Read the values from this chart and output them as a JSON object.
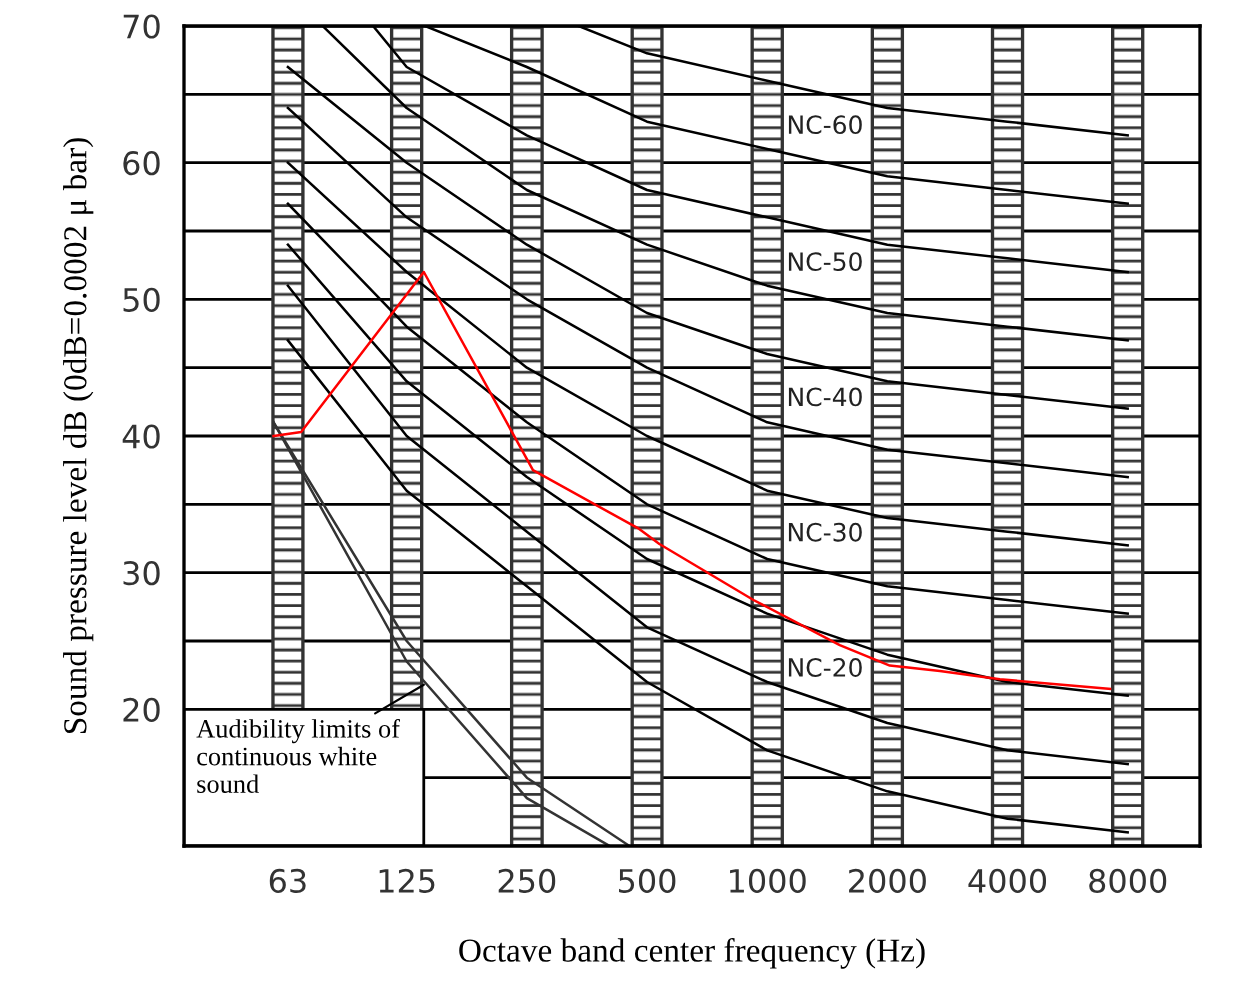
{
  "chart_data": {
    "type": "line",
    "xlabel": "Octave band center frequency (Hz)",
    "ylabel": "Sound pressure level dB (0dB=0.0002 μ bar)",
    "log": "x",
    "grid": "y",
    "legend": false,
    "marker": "none",
    "line_style": "solid",
    "xlim": [
      34.6,
      12140
    ],
    "xticks": [
      63,
      125,
      250,
      500,
      1000,
      2000,
      4000,
      8000
    ],
    "ylim": [
      10,
      70
    ],
    "yticks": [
      {
        "value": 15,
        "label": null
      },
      20,
      {
        "value": 25,
        "label": null
      },
      30,
      {
        "value": 35,
        "label": null
      },
      40,
      {
        "value": 45,
        "label": null
      },
      50,
      {
        "value": 55,
        "label": null
      },
      60,
      {
        "value": 65,
        "label": null
      },
      70
    ],
    "bands": [
      {
        "axis": "x",
        "from": 57.8,
        "to": 68.7,
        "color": "#333333"
      },
      {
        "axis": "x",
        "from": 114.6,
        "to": 136.3,
        "color": "#333333"
      },
      {
        "axis": "x",
        "from": 229,
        "to": 273,
        "color": "#333333"
      },
      {
        "axis": "x",
        "from": 459,
        "to": 545,
        "color": "#333333"
      },
      {
        "axis": "x",
        "from": 917,
        "to": 1091,
        "color": "#333333"
      },
      {
        "axis": "x",
        "from": 1834,
        "to": 2181,
        "color": "#333333"
      },
      {
        "axis": "x",
        "from": 3668,
        "to": 4362,
        "color": "#333333"
      },
      {
        "axis": "x",
        "from": 7336,
        "to": 8724,
        "color": "#333333"
      }
    ],
    "series": [
      {
        "color": "#000000",
        "x": [
          337,
          500,
          1000,
          2000,
          4000,
          8000
        ],
        "values": [
          70,
          68,
          66,
          64,
          63,
          62
        ]
      },
      {
        "color": "#000000",
        "x": [
          139,
          250,
          500,
          1000,
          2000,
          4000,
          8000
        ],
        "values": [
          70,
          67,
          63,
          61,
          59,
          58,
          57
        ]
      },
      {
        "color": "#000000",
        "x": [
          103,
          125,
          250,
          500,
          1000,
          2000,
          4000,
          8000
        ],
        "values": [
          70,
          67,
          62,
          58,
          56,
          54,
          53,
          52
        ]
      },
      {
        "color": "#000000",
        "x": [
          77,
          125,
          250,
          500,
          1000,
          2000,
          4000,
          8000
        ],
        "values": [
          70,
          64,
          58,
          54,
          51,
          49,
          48,
          47
        ]
      },
      {
        "color": "#000000",
        "x": [
          63,
          125,
          250,
          500,
          1000,
          2000,
          4000,
          8000
        ],
        "values": [
          67,
          60,
          54,
          49,
          46,
          44,
          43,
          42
        ]
      },
      {
        "color": "#000000",
        "x": [
          63,
          125,
          250,
          500,
          1000,
          2000,
          4000,
          8000
        ],
        "values": [
          64,
          56,
          50,
          45,
          41,
          39,
          38,
          37
        ]
      },
      {
        "color": "#000000",
        "x": [
          63,
          125,
          250,
          500,
          1000,
          2000,
          4000,
          8000
        ],
        "values": [
          60,
          52,
          45,
          40,
          36,
          34,
          33,
          32
        ]
      },
      {
        "color": "#000000",
        "x": [
          63,
          125,
          250,
          500,
          1000,
          2000,
          4000,
          8000
        ],
        "values": [
          57,
          48,
          41,
          35,
          31,
          29,
          28,
          27
        ]
      },
      {
        "color": "#000000",
        "x": [
          63,
          125,
          250,
          500,
          1000,
          2000,
          4000,
          8000
        ],
        "values": [
          54,
          44,
          37,
          31,
          27,
          24,
          22,
          21
        ]
      },
      {
        "color": "#000000",
        "x": [
          63,
          125,
          250,
          500,
          1000,
          2000,
          4000,
          8000
        ],
        "values": [
          51,
          40,
          33,
          26,
          22,
          19,
          17,
          16
        ]
      },
      {
        "color": "#000000",
        "x": [
          63,
          125,
          250,
          500,
          1000,
          2000,
          4000,
          8000
        ],
        "values": [
          47,
          36,
          29,
          22,
          17,
          14,
          12,
          11
        ]
      },
      {
        "color": "#333333",
        "x": [
          58,
          125,
          250,
          452
        ],
        "values": [
          41,
          25,
          15,
          10
        ]
      },
      {
        "color": "#333333",
        "x": [
          58,
          125,
          250,
          403
        ],
        "values": [
          41,
          23.5,
          13.5,
          10
        ]
      },
      {
        "color": "#ff0000",
        "x": [
          58,
          68,
          138,
          259,
          478,
          537,
          924,
          1520,
          2028,
          2708,
          3829,
          7226
        ],
        "values": [
          40,
          40.3,
          52,
          37.5,
          33.2,
          32.1,
          28,
          24.7,
          23.2,
          22.8,
          22.2,
          21.5
        ]
      }
    ],
    "annotations": [
      "NC-60",
      "NC-50",
      "NC-40",
      "NC-30",
      "NC-20",
      {
        "text": "Audibility limits of\ncontinuous white\nsound",
        "x": 138,
        "y": 21.8
      }
    ]
  }
}
